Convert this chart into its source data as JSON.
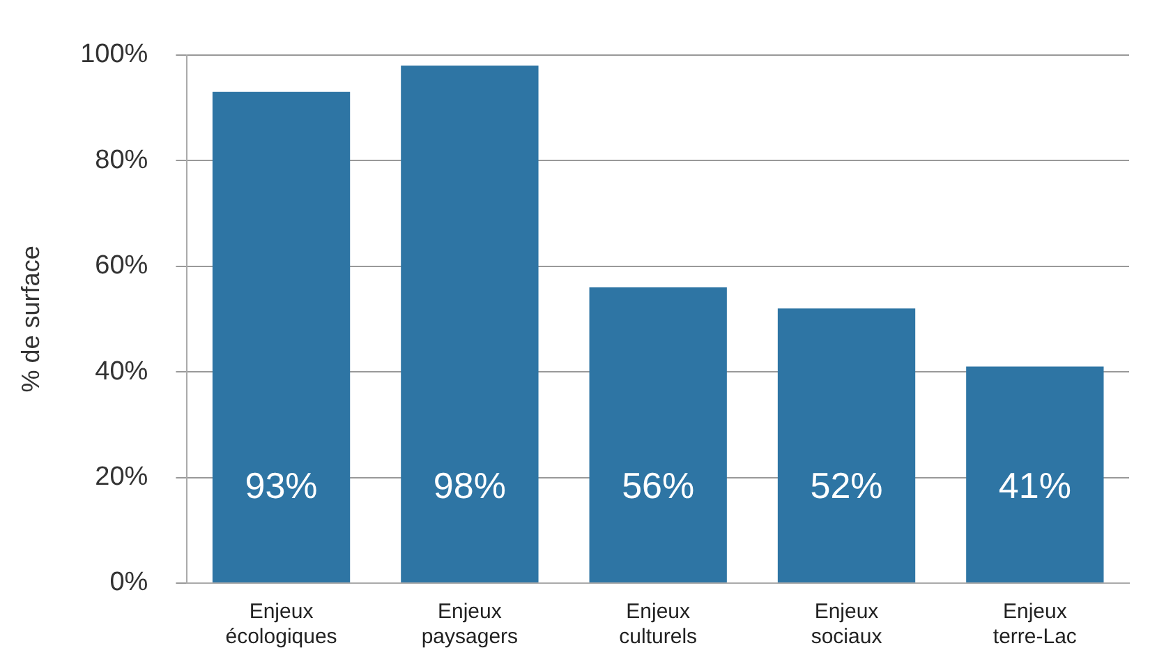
{
  "chart_data": {
    "type": "bar",
    "ylabel": "% de surface",
    "categories": [
      "Enjeux écologiques",
      "Enjeux paysagers",
      "Enjeux culturels",
      "Enjeux sociaux",
      "Enjeux terre-Lac"
    ],
    "values": [
      93,
      98,
      56,
      52,
      41
    ],
    "color": "#2e75a4",
    "value_labels": [
      "93%",
      "98%",
      "56%",
      "52%",
      "41%"
    ],
    "ylim": [
      0,
      100
    ],
    "yticks": [
      {
        "value": 0,
        "label": "0%"
      },
      {
        "value": 20,
        "label": "20%"
      },
      {
        "value": 40,
        "label": "40%"
      },
      {
        "value": 60,
        "label": "60%"
      },
      {
        "value": 80,
        "label": "80%"
      },
      {
        "value": 100,
        "label": "100%"
      }
    ],
    "grid": "y",
    "legend": false
  }
}
